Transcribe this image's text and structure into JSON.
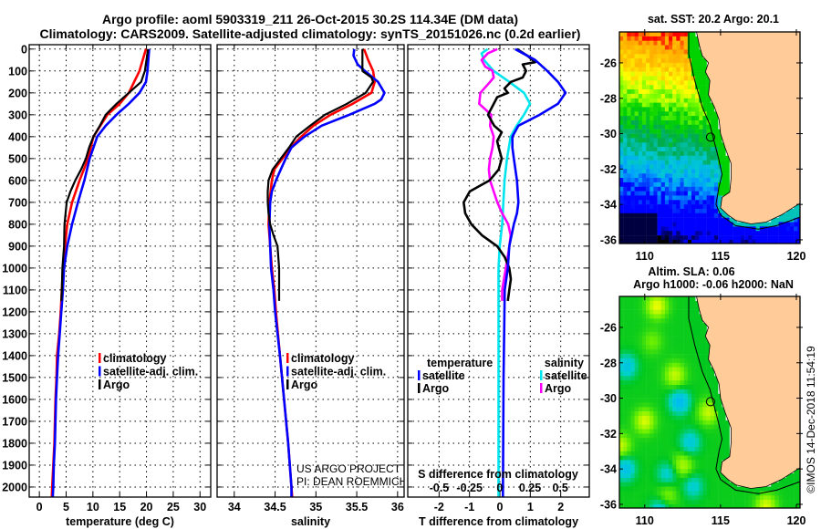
{
  "title": {
    "line1": "Argo profile: aoml 5903319_211 26-Oct-2015 30.2S 114.34E (DM data)",
    "line2": "Climatology: CARS2009. Satellite-adjusted climatology: synTS_20151026.nc (0.2d earlier)"
  },
  "chart_data": [
    {
      "type": "line",
      "id": "temperature",
      "xlabel": "temperature (deg C)",
      "ylabel": "depth",
      "xlim": [
        -1.9,
        32.0
      ],
      "ylim": [
        2046,
        -20
      ],
      "grid": true,
      "xticks": [
        0,
        5,
        10,
        15,
        20,
        25,
        30
      ],
      "xtick_labels": [
        "0",
        "5",
        "10",
        "15",
        "20",
        "25",
        "30"
      ],
      "yticks": [
        0,
        100,
        200,
        300,
        400,
        500,
        600,
        700,
        800,
        900,
        1000,
        1100,
        1200,
        1300,
        1400,
        1500,
        1600,
        1700,
        1800,
        1900,
        2000
      ],
      "ytick_labels": [
        "0",
        "100",
        "200",
        "300",
        "400",
        "500",
        "600",
        "700",
        "800",
        "900",
        "1000",
        "1100",
        "1200",
        "1300",
        "1400",
        "1500",
        "1600",
        "1700",
        "1800",
        "1900",
        "2000"
      ],
      "legend_placement": "lower-middle",
      "series": [
        {
          "name": "climatology",
          "color": "#ff0000",
          "depth": [
            0,
            100,
            200,
            250,
            300,
            400,
            500,
            600,
            700,
            800,
            900,
            1000,
            1100,
            1200,
            1300,
            1400,
            1500,
            1600,
            1700,
            1800,
            1900,
            2000,
            2050
          ],
          "values": [
            19.9,
            18.7,
            16.7,
            15.0,
            12.7,
            10.1,
            9.1,
            7.5,
            6.1,
            5.2,
            4.8,
            4.4,
            4.2,
            4.0,
            3.7,
            3.3,
            3.2,
            3.0,
            2.9,
            2.8,
            2.6,
            2.4,
            2.3
          ]
        },
        {
          "name": "satellite-adj. clim.",
          "color": "#0000ff",
          "depth": [
            0,
            100,
            150,
            200,
            250,
            300,
            350,
            400,
            500,
            600,
            700,
            800,
            900,
            1000,
            1100,
            1200,
            1300,
            1400,
            1500,
            1600,
            1700,
            1800,
            1900,
            2000,
            2050
          ],
          "values": [
            20.5,
            20.2,
            19.9,
            18.7,
            16.7,
            14.4,
            12.4,
            10.8,
            9.4,
            8.4,
            7.2,
            6.1,
            5.2,
            4.6,
            4.4,
            4.1,
            3.8,
            3.5,
            3.3,
            3.1,
            3.0,
            2.9,
            2.7,
            2.6,
            2.5
          ]
        },
        {
          "name": "Argo",
          "color": "#000000",
          "depth": [
            0,
            100,
            150,
            200,
            250,
            300,
            350,
            400,
            450,
            500,
            550,
            600,
            650,
            700,
            800,
            900,
            1000,
            1100,
            1150
          ],
          "values": [
            20.3,
            19.7,
            19.0,
            16.7,
            14.4,
            12.4,
            11.3,
            10.1,
            9.3,
            8.7,
            7.8,
            6.7,
            5.8,
            5.1,
            4.7,
            4.6,
            4.3,
            4.2,
            4.1
          ]
        }
      ]
    },
    {
      "type": "line",
      "id": "salinity",
      "xlabel": "salinity",
      "xlim": [
        33.79,
        36.08
      ],
      "ylim": [
        2046,
        -20
      ],
      "grid": true,
      "xticks": [
        34,
        34.5,
        35,
        35.5,
        36
      ],
      "xtick_labels": [
        "34",
        "34.5",
        "35",
        "35.5",
        "36"
      ],
      "legend_placement": "lower-middle",
      "annotations": [
        "US ARGO PROJECT",
        "PI: DEAN ROEMMICH"
      ],
      "series": [
        {
          "name": "climatology",
          "color": "#ff0000",
          "depth": [
            0,
            50,
            100,
            150,
            200,
            250,
            300,
            350,
            400,
            450,
            500,
            550,
            600,
            700,
            800,
            900,
            1000,
            1100,
            1200,
            1400,
            1600,
            1800,
            2000,
            2050
          ],
          "values": [
            35.59,
            35.64,
            35.7,
            35.72,
            35.68,
            35.45,
            35.18,
            34.97,
            34.82,
            34.69,
            34.59,
            34.49,
            34.46,
            34.43,
            34.42,
            34.44,
            34.46,
            34.49,
            34.51,
            34.56,
            34.61,
            34.66,
            34.7,
            34.71
          ]
        },
        {
          "name": "satellite-adj. clim.",
          "color": "#0000ff",
          "depth": [
            0,
            30,
            70,
            100,
            150,
            200,
            230,
            250,
            300,
            350,
            400,
            450,
            500,
            550,
            600,
            650,
            700,
            800,
            900,
            1000,
            1100,
            1200,
            1400,
            1600,
            1800,
            2000,
            2050
          ],
          "values": [
            35.47,
            35.46,
            35.51,
            35.6,
            35.76,
            35.84,
            35.8,
            35.72,
            35.41,
            35.07,
            34.86,
            34.7,
            34.63,
            34.57,
            34.51,
            34.46,
            34.44,
            34.43,
            34.44,
            34.45,
            34.48,
            34.5,
            34.56,
            34.61,
            34.66,
            34.7,
            34.7
          ]
        },
        {
          "name": "Argo",
          "color": "#000000",
          "depth": [
            0,
            100,
            130,
            150,
            200,
            250,
            300,
            350,
            400,
            450,
            500,
            550,
            600,
            650,
            700,
            750,
            800,
            850,
            900,
            1000,
            1100,
            1150
          ],
          "values": [
            35.57,
            35.57,
            35.68,
            35.7,
            35.61,
            35.38,
            35.11,
            34.93,
            34.76,
            34.67,
            34.57,
            34.47,
            34.42,
            34.41,
            34.41,
            34.42,
            34.44,
            34.48,
            34.53,
            34.55,
            34.55,
            34.55
          ]
        }
      ]
    },
    {
      "type": "line",
      "id": "difference",
      "xlabel": "T difference from climatology",
      "xlabel2": "S difference from climatology",
      "xlim": [
        -3.03,
        2.94
      ],
      "xlim2": [
        -0.76,
        0.74
      ],
      "ylim": [
        2046,
        -20
      ],
      "grid": true,
      "xticks": [
        -2,
        -1,
        0,
        1,
        2
      ],
      "xtick_labels": [
        "-2",
        "-1",
        "0",
        "1",
        "2"
      ],
      "xticks2": [
        -0.5,
        -0.25,
        0,
        0.25,
        0.5
      ],
      "xtick_labels2": [
        "-0.5",
        "-0.25",
        "0",
        "0.25",
        "0.5"
      ],
      "legend_titles": [
        "temperature",
        "salinity"
      ],
      "series": [
        {
          "name": "satellite",
          "group": "temperature",
          "axis": "T",
          "color": "#0000ff",
          "depth": [
            0,
            50,
            100,
            150,
            200,
            250,
            300,
            350,
            400,
            450,
            500,
            600,
            700,
            750,
            800,
            900,
            1000,
            1100,
            1500,
            2050
          ],
          "values": [
            0.5,
            1.16,
            1.56,
            1.91,
            2.16,
            1.91,
            1.31,
            0.61,
            0.41,
            0.41,
            0.46,
            0.56,
            0.61,
            0.56,
            0.46,
            0.31,
            0.26,
            0.16,
            0.12,
            0.1
          ]
        },
        {
          "name": "Argo",
          "group": "temperature",
          "axis": "T",
          "color": "#000000",
          "depth": [
            0,
            30,
            60,
            70,
            100,
            130,
            150,
            180,
            200,
            220,
            300,
            350,
            380,
            420,
            450,
            500,
            550,
            600,
            650,
            700,
            750,
            800,
            850,
            900,
            950,
            1000,
            1050,
            1100,
            1150
          ],
          "values": [
            0.56,
            0.9,
            1.16,
            0.75,
            0.86,
            0.75,
            0.36,
            0.15,
            0.26,
            -0.09,
            -0.39,
            -0.19,
            0.06,
            -0.09,
            -0.04,
            0.06,
            -0.04,
            -0.34,
            -0.99,
            -1.19,
            -1.14,
            -0.94,
            -0.59,
            -0.09,
            0.16,
            0.31,
            0.36,
            0.31,
            0.26
          ]
        },
        {
          "name": "satellite",
          "group": "salinity",
          "axis": "S",
          "color": "#00e5ee",
          "depth": [
            0,
            20,
            50,
            100,
            150,
            200,
            250,
            300,
            350,
            400,
            500,
            600,
            700,
            800,
            900,
            1000,
            1100,
            2050
          ],
          "values": [
            -0.1,
            -0.15,
            -0.13,
            -0.05,
            0.08,
            0.2,
            0.25,
            0.2,
            0.14,
            0.09,
            0.06,
            0.04,
            0.03,
            0.02,
            0,
            -0.01,
            -0.01,
            -0.01
          ]
        },
        {
          "name": "Argo",
          "group": "salinity",
          "axis": "S",
          "color": "#ff00ff",
          "depth": [
            0,
            20,
            50,
            80,
            100,
            130,
            150,
            200,
            250,
            300,
            350,
            400,
            450,
            500,
            550,
            600,
            650,
            700,
            750,
            800,
            850,
            900,
            1000,
            1100,
            1150
          ],
          "values": [
            -0.02,
            -0.1,
            -0.15,
            -0.12,
            -0.06,
            -0.05,
            -0.08,
            -0.16,
            -0.17,
            -0.07,
            -0.08,
            -0.05,
            -0.06,
            -0.08,
            -0.09,
            -0.08,
            -0.05,
            -0.02,
            0.02,
            0.07,
            0.09,
            0.08,
            0.05,
            0.02,
            0.02
          ]
        }
      ]
    }
  ],
  "maps": {
    "sst_title": "sat. SST: 20.2 Argo: 20.1",
    "sla_title_line1": "Altim. SLA: 0.06",
    "sla_title_line2": "Argo h1000: -0.06 h2000: NaN",
    "lat_ticks": [
      -26,
      -28,
      -30,
      -32,
      -34,
      -36
    ],
    "lat_tick_labels": [
      "-26",
      "-28",
      "-30",
      "-32",
      "-34",
      "-36"
    ],
    "lon_ticks": [
      110,
      115,
      120
    ],
    "lon_tick_labels": [
      "110",
      "115",
      "120"
    ],
    "float_position": {
      "lat": -30.2,
      "lon": 114.34
    },
    "land_color": "#ffcc99"
  },
  "footer": {
    "credit": "©IMOS 14-Dec-2018 11:54:19"
  }
}
